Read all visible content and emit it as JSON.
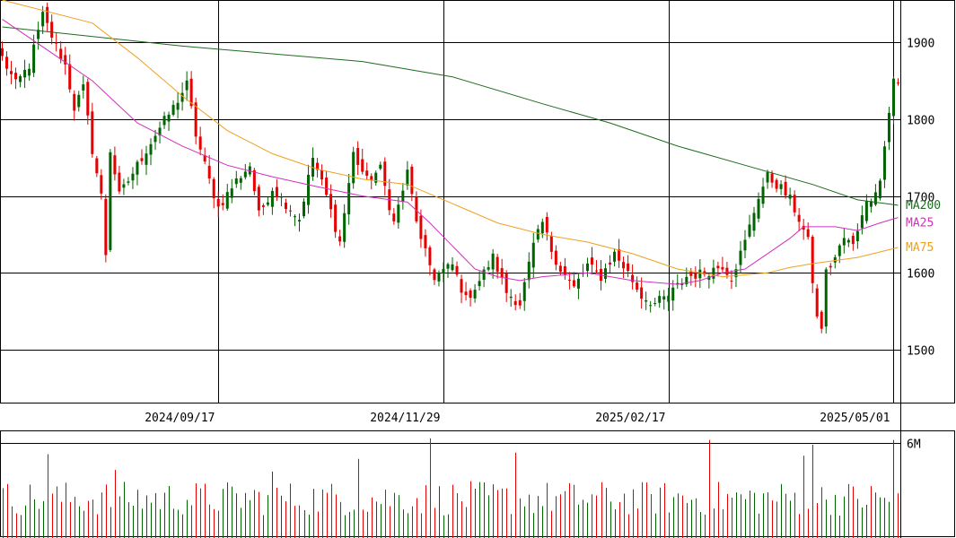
{
  "colors": {
    "up": "#006400",
    "down": "#e60000",
    "ma200": "#1f6b1f",
    "ma25": "#d22fbd",
    "ma75": "#f0a020",
    "grid": "#000000"
  },
  "price_axis": {
    "ylim": [
      1430,
      1955
    ],
    "ticks": [
      {
        "value": 1900,
        "label": "1900"
      },
      {
        "value": 1800,
        "label": "1800"
      },
      {
        "value": 1700,
        "label": "1700"
      },
      {
        "value": 1600,
        "label": "1600"
      },
      {
        "value": 1500,
        "label": "1500"
      }
    ]
  },
  "date_axis": {
    "ticks": [
      {
        "index": 48,
        "label": "2024/09/17"
      },
      {
        "index": 98,
        "label": "2024/11/29"
      },
      {
        "index": 148,
        "label": "2025/02/17"
      },
      {
        "index": 198,
        "label": "2025/05/01"
      }
    ]
  },
  "volume_axis": {
    "ylim": [
      0,
      6800000
    ],
    "ticks": [
      {
        "value": 6000000,
        "label": "6M"
      }
    ]
  },
  "legend": {
    "ma200": "MA200",
    "ma25": "MA25",
    "ma75": "MA75"
  },
  "chart_data": {
    "type": "candlestick",
    "title": "",
    "xlabel": "",
    "ylabel": "",
    "anchors": [
      {
        "i": 0,
        "p": 1880
      },
      {
        "i": 3,
        "p": 1845
      },
      {
        "i": 6,
        "p": 1870
      },
      {
        "i": 9,
        "p": 1935
      },
      {
        "i": 12,
        "p": 1895
      },
      {
        "i": 14,
        "p": 1870
      },
      {
        "i": 16,
        "p": 1815
      },
      {
        "i": 18,
        "p": 1840
      },
      {
        "i": 20,
        "p": 1760
      },
      {
        "i": 22,
        "p": 1700
      },
      {
        "i": 23,
        "p": 1625
      },
      {
        "i": 24,
        "p": 1760
      },
      {
        "i": 26,
        "p": 1700
      },
      {
        "i": 30,
        "p": 1740
      },
      {
        "i": 34,
        "p": 1780
      },
      {
        "i": 38,
        "p": 1815
      },
      {
        "i": 41,
        "p": 1845
      },
      {
        "i": 43,
        "p": 1780
      },
      {
        "i": 46,
        "p": 1720
      },
      {
        "i": 48,
        "p": 1685
      },
      {
        "i": 52,
        "p": 1720
      },
      {
        "i": 55,
        "p": 1740
      },
      {
        "i": 57,
        "p": 1675
      },
      {
        "i": 60,
        "p": 1710
      },
      {
        "i": 63,
        "p": 1690
      },
      {
        "i": 66,
        "p": 1670
      },
      {
        "i": 69,
        "p": 1750
      },
      {
        "i": 72,
        "p": 1700
      },
      {
        "i": 75,
        "p": 1640
      },
      {
        "i": 78,
        "p": 1755
      },
      {
        "i": 81,
        "p": 1720
      },
      {
        "i": 84,
        "p": 1735
      },
      {
        "i": 87,
        "p": 1665
      },
      {
        "i": 90,
        "p": 1730
      },
      {
        "i": 93,
        "p": 1640
      },
      {
        "i": 96,
        "p": 1595
      },
      {
        "i": 100,
        "p": 1610
      },
      {
        "i": 103,
        "p": 1565
      },
      {
        "i": 106,
        "p": 1590
      },
      {
        "i": 109,
        "p": 1620
      },
      {
        "i": 112,
        "p": 1575
      },
      {
        "i": 115,
        "p": 1560
      },
      {
        "i": 118,
        "p": 1635
      },
      {
        "i": 120,
        "p": 1665
      },
      {
        "i": 122,
        "p": 1630
      },
      {
        "i": 124,
        "p": 1605
      },
      {
        "i": 127,
        "p": 1580
      },
      {
        "i": 130,
        "p": 1610
      },
      {
        "i": 133,
        "p": 1595
      },
      {
        "i": 136,
        "p": 1625
      },
      {
        "i": 139,
        "p": 1600
      },
      {
        "i": 142,
        "p": 1570
      },
      {
        "i": 145,
        "p": 1560
      },
      {
        "i": 148,
        "p": 1570
      },
      {
        "i": 152,
        "p": 1595
      },
      {
        "i": 156,
        "p": 1600
      },
      {
        "i": 160,
        "p": 1610
      },
      {
        "i": 162,
        "p": 1595
      },
      {
        "i": 165,
        "p": 1640
      },
      {
        "i": 168,
        "p": 1700
      },
      {
        "i": 170,
        "p": 1725
      },
      {
        "i": 173,
        "p": 1710
      },
      {
        "i": 175,
        "p": 1695
      },
      {
        "i": 177,
        "p": 1670
      },
      {
        "i": 179,
        "p": 1640
      },
      {
        "i": 181,
        "p": 1540
      },
      {
        "i": 182,
        "p": 1530
      },
      {
        "i": 183,
        "p": 1600
      },
      {
        "i": 185,
        "p": 1620
      },
      {
        "i": 187,
        "p": 1645
      },
      {
        "i": 189,
        "p": 1635
      },
      {
        "i": 191,
        "p": 1680
      },
      {
        "i": 193,
        "p": 1700
      },
      {
        "i": 195,
        "p": 1720
      },
      {
        "i": 197,
        "p": 1810
      },
      {
        "i": 198,
        "p": 1850
      },
      {
        "i": 199,
        "p": 1845
      }
    ],
    "ma200": [
      [
        0,
        1920
      ],
      [
        40,
        1895
      ],
      [
        80,
        1875
      ],
      [
        100,
        1855
      ],
      [
        120,
        1820
      ],
      [
        135,
        1795
      ],
      [
        150,
        1765
      ],
      [
        165,
        1740
      ],
      [
        180,
        1715
      ],
      [
        190,
        1695
      ],
      [
        199,
        1688
      ]
    ],
    "ma25": [
      [
        0,
        1930
      ],
      [
        10,
        1890
      ],
      [
        20,
        1850
      ],
      [
        30,
        1795
      ],
      [
        40,
        1765
      ],
      [
        50,
        1740
      ],
      [
        60,
        1725
      ],
      [
        70,
        1712
      ],
      [
        80,
        1700
      ],
      [
        90,
        1692
      ],
      [
        95,
        1665
      ],
      [
        100,
        1635
      ],
      [
        105,
        1605
      ],
      [
        110,
        1595
      ],
      [
        115,
        1590
      ],
      [
        120,
        1595
      ],
      [
        130,
        1600
      ],
      [
        140,
        1590
      ],
      [
        150,
        1585
      ],
      [
        155,
        1590
      ],
      [
        160,
        1600
      ],
      [
        165,
        1605
      ],
      [
        170,
        1625
      ],
      [
        175,
        1645
      ],
      [
        178,
        1660
      ],
      [
        185,
        1660
      ],
      [
        190,
        1655
      ],
      [
        195,
        1665
      ],
      [
        199,
        1672
      ]
    ],
    "ma75": [
      [
        0,
        1955
      ],
      [
        20,
        1925
      ],
      [
        30,
        1880
      ],
      [
        40,
        1830
      ],
      [
        50,
        1785
      ],
      [
        60,
        1755
      ],
      [
        70,
        1735
      ],
      [
        80,
        1722
      ],
      [
        90,
        1715
      ],
      [
        100,
        1690
      ],
      [
        110,
        1665
      ],
      [
        120,
        1650
      ],
      [
        130,
        1640
      ],
      [
        140,
        1625
      ],
      [
        150,
        1605
      ],
      [
        160,
        1595
      ],
      [
        170,
        1600
      ],
      [
        175,
        1607
      ],
      [
        180,
        1612
      ],
      [
        190,
        1620
      ],
      [
        199,
        1633
      ]
    ],
    "volume_spikes": [
      [
        10,
        5300000
      ],
      [
        95,
        6300000
      ],
      [
        114,
        5400000
      ],
      [
        157,
        6200000
      ],
      [
        180,
        5900000
      ],
      [
        198,
        6200000
      ],
      [
        178,
        5200000
      ],
      [
        79,
        5000000
      ],
      [
        25,
        4300000
      ],
      [
        60,
        4200000
      ]
    ]
  }
}
